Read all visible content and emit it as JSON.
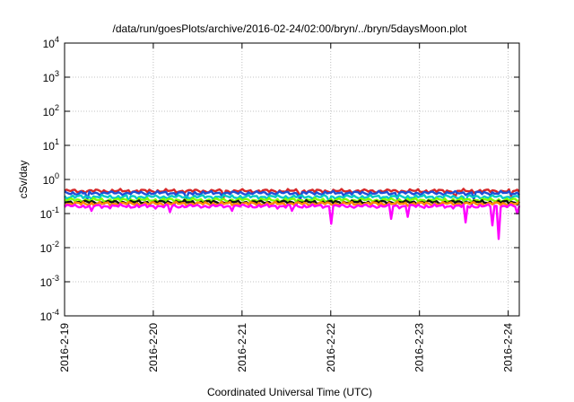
{
  "chart_data": {
    "type": "line",
    "title": "/data/run/goesPlots/archive/2016-02-24/02:00/bryn/../bryn/5daysMoon.plot",
    "xlabel": "Coordinated Universal Time (UTC)",
    "ylabel": "cSv/day",
    "yscale": "log",
    "ylim": [
      0.0001,
      10000
    ],
    "xlim": [
      "2016-02-19",
      "2016-02-24 03:00"
    ],
    "grid": true,
    "y_ticks": [
      {
        "value": 0.0001,
        "base": "10",
        "exp": "-4"
      },
      {
        "value": 0.001,
        "base": "10",
        "exp": "-3"
      },
      {
        "value": 0.01,
        "base": "10",
        "exp": "-2"
      },
      {
        "value": 0.1,
        "base": "10",
        "exp": "-1"
      },
      {
        "value": 1,
        "base": "10",
        "exp": "0"
      },
      {
        "value": 10,
        "base": "10",
        "exp": "1"
      },
      {
        "value": 100,
        "base": "10",
        "exp": "2"
      },
      {
        "value": 1000,
        "base": "10",
        "exp": "3"
      },
      {
        "value": 10000,
        "base": "10",
        "exp": "4"
      }
    ],
    "x_ticks": [
      "2016-2-19",
      "2016-2-20",
      "2016-2-21",
      "2016-2-22",
      "2016-2-23",
      "2016-2-24"
    ],
    "series": [
      {
        "color": "#d62728",
        "level": 0.46,
        "dips": [
          [
            0.35,
            0.3
          ],
          [
            0.52,
            0.32
          ],
          [
            0.86,
            0.3
          ],
          [
            0.98,
            0.33
          ]
        ]
      },
      {
        "color": "#1f4fd8",
        "level": 0.4,
        "dips": [
          [
            0.05,
            0.26
          ],
          [
            0.27,
            0.27
          ],
          [
            0.52,
            0.25
          ],
          [
            0.73,
            0.27
          ],
          [
            0.9,
            0.26
          ]
        ]
      },
      {
        "color": "#00c8c8",
        "level": 0.31,
        "dips": [
          [
            0.14,
            0.22
          ],
          [
            0.58,
            0.22
          ],
          [
            0.88,
            0.21
          ]
        ]
      },
      {
        "color": "#7fff00",
        "level": 0.25,
        "dips": []
      },
      {
        "color": "#111111",
        "level": 0.215,
        "dips": []
      },
      {
        "color": "#ff8c00",
        "level": 0.195,
        "dips": []
      },
      {
        "color": "#ff00ff",
        "level": 0.165,
        "dips": [
          [
            0.06,
            0.12
          ],
          [
            0.23,
            0.11
          ],
          [
            0.37,
            0.12
          ],
          [
            0.5,
            0.12
          ],
          [
            0.588,
            0.05
          ],
          [
            0.72,
            0.07
          ],
          [
            0.755,
            0.08
          ],
          [
            0.88,
            0.055
          ],
          [
            0.94,
            0.045
          ],
          [
            0.955,
            0.018
          ],
          [
            0.995,
            0.1
          ]
        ]
      }
    ]
  }
}
